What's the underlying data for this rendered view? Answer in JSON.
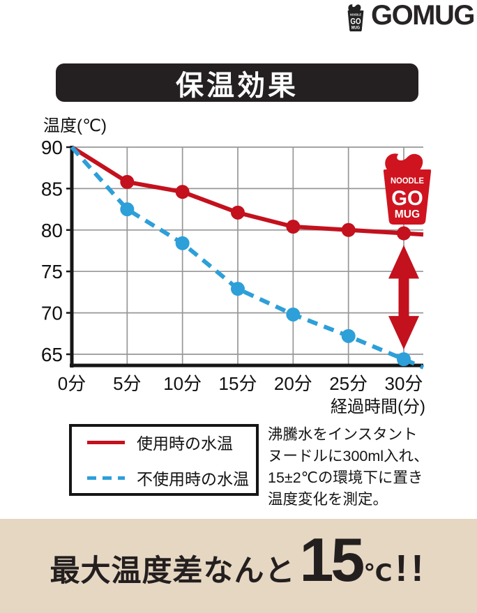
{
  "colors": {
    "red": "#c3111d",
    "blue": "#2d9fd9",
    "cup_red": "#cf1420",
    "title_bg": "#242021",
    "banner_bg": "#e6d7c3",
    "grid": "#979797"
  },
  "logo": {
    "cup_lines": [
      "NOODLE",
      "GO",
      "MUG"
    ],
    "wordmark": "GOMUG"
  },
  "title": "保温効果",
  "chart_data": {
    "type": "line",
    "title": "保温効果",
    "ylabel": "温度(℃)",
    "xlabel": "経過時間(分)",
    "x": [
      0,
      5,
      10,
      15,
      20,
      25,
      30
    ],
    "categories": [
      "0分",
      "5分",
      "10分",
      "15分",
      "20分",
      "25分",
      "30分"
    ],
    "yticks": [
      90,
      85,
      80,
      75,
      70,
      65
    ],
    "ylim": [
      63.5,
      90
    ],
    "grid": true,
    "legend_position": "bottom-left",
    "series": [
      {
        "name": "使用時の水温",
        "color": "#c3111d",
        "line_style": "solid",
        "values": [
          90,
          85.8,
          84.6,
          82.1,
          80.4,
          80.0,
          79.6
        ]
      },
      {
        "name": "不使用時の水温",
        "color": "#2d9fd9",
        "line_style": "dashed",
        "values": [
          90,
          82.5,
          78.4,
          72.9,
          69.8,
          67.2,
          64.4
        ]
      }
    ],
    "annotations": {
      "diff_arrow": {
        "at_x": 30,
        "color": "#c3111d"
      },
      "cup_badge": {
        "color": "#cf1420",
        "lines": [
          "NOODLE",
          "GO",
          "MUG"
        ]
      }
    }
  },
  "note": {
    "lines": [
      "沸騰水をインスタント",
      "ヌードルに300ml入れ、",
      "15±2℃の環境下に置き",
      "温度変化を測定。"
    ]
  },
  "banner": {
    "prefix": "最大温度差なんと",
    "value": "15",
    "unit": "℃",
    "suffix": "!!"
  }
}
